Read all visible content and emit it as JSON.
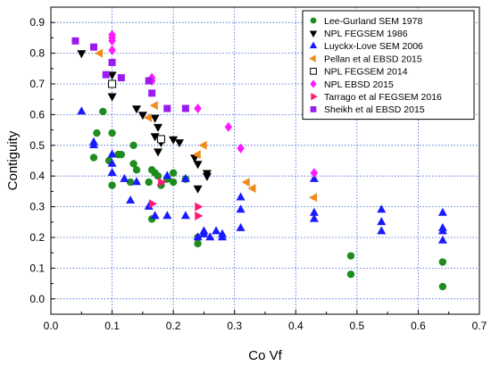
{
  "chart_data": {
    "type": "scatter",
    "xlabel": "Co Vf",
    "ylabel": "Contiguity",
    "xlim": [
      0,
      0.7
    ],
    "ylim": [
      -0.05,
      0.95
    ],
    "x_ticks": [
      0.0,
      0.1,
      0.2,
      0.3,
      0.4,
      0.5,
      0.6,
      0.7
    ],
    "x_tick_labels": [
      "0.0",
      "0.1",
      "0.2",
      "0.3",
      "0.4",
      "0.5",
      "0.6",
      "0.7"
    ],
    "y_ticks": [
      0.0,
      0.1,
      0.2,
      0.3,
      0.4,
      0.5,
      0.6,
      0.7,
      0.8,
      0.9
    ],
    "y_tick_labels": [
      "0.0",
      "0.1",
      "0.2",
      "0.3",
      "0.4",
      "0.5",
      "0.6",
      "0.7",
      "0.8",
      "0.9"
    ],
    "grid": true,
    "legend_position": "top-right",
    "series": [
      {
        "name": "Lee-Gurland SEM 1978",
        "marker": "circle",
        "color": "#1e8c1e",
        "points": [
          [
            0.07,
            0.46
          ],
          [
            0.075,
            0.54
          ],
          [
            0.085,
            0.61
          ],
          [
            0.095,
            0.45
          ],
          [
            0.1,
            0.54
          ],
          [
            0.1,
            0.37
          ],
          [
            0.11,
            0.47
          ],
          [
            0.115,
            0.47
          ],
          [
            0.13,
            0.38
          ],
          [
            0.135,
            0.44
          ],
          [
            0.135,
            0.5
          ],
          [
            0.14,
            0.42
          ],
          [
            0.16,
            0.38
          ],
          [
            0.165,
            0.42
          ],
          [
            0.165,
            0.26
          ],
          [
            0.17,
            0.41
          ],
          [
            0.175,
            0.4
          ],
          [
            0.18,
            0.37
          ],
          [
            0.19,
            0.39
          ],
          [
            0.2,
            0.38
          ],
          [
            0.2,
            0.41
          ],
          [
            0.22,
            0.39
          ],
          [
            0.24,
            0.2
          ],
          [
            0.24,
            0.18
          ],
          [
            0.49,
            0.14
          ],
          [
            0.49,
            0.08
          ],
          [
            0.64,
            0.12
          ],
          [
            0.64,
            0.04
          ]
        ]
      },
      {
        "name": "NPL FEGSEM 1986",
        "marker": "triangle-down",
        "color": "#000000",
        "points": [
          [
            0.05,
            0.8
          ],
          [
            0.1,
            0.73
          ],
          [
            0.1,
            0.66
          ],
          [
            0.14,
            0.62
          ],
          [
            0.15,
            0.6
          ],
          [
            0.17,
            0.59
          ],
          [
            0.175,
            0.56
          ],
          [
            0.17,
            0.53
          ],
          [
            0.18,
            0.51
          ],
          [
            0.175,
            0.48
          ],
          [
            0.2,
            0.52
          ],
          [
            0.21,
            0.51
          ],
          [
            0.235,
            0.46
          ],
          [
            0.24,
            0.44
          ],
          [
            0.255,
            0.41
          ],
          [
            0.255,
            0.4
          ],
          [
            0.24,
            0.36
          ]
        ]
      },
      {
        "name": "Luyckx-Love SEM 2006",
        "marker": "triangle-up",
        "color": "#1a1aff",
        "points": [
          [
            0.05,
            0.61
          ],
          [
            0.07,
            0.51
          ],
          [
            0.07,
            0.5
          ],
          [
            0.1,
            0.47
          ],
          [
            0.1,
            0.44
          ],
          [
            0.1,
            0.41
          ],
          [
            0.12,
            0.39
          ],
          [
            0.13,
            0.32
          ],
          [
            0.14,
            0.38
          ],
          [
            0.16,
            0.3
          ],
          [
            0.17,
            0.27
          ],
          [
            0.19,
            0.27
          ],
          [
            0.19,
            0.4
          ],
          [
            0.22,
            0.27
          ],
          [
            0.22,
            0.39
          ],
          [
            0.24,
            0.2
          ],
          [
            0.25,
            0.21
          ],
          [
            0.25,
            0.22
          ],
          [
            0.26,
            0.2
          ],
          [
            0.27,
            0.22
          ],
          [
            0.28,
            0.21
          ],
          [
            0.28,
            0.2
          ],
          [
            0.31,
            0.33
          ],
          [
            0.31,
            0.29
          ],
          [
            0.31,
            0.23
          ],
          [
            0.43,
            0.39
          ],
          [
            0.43,
            0.28
          ],
          [
            0.43,
            0.26
          ],
          [
            0.54,
            0.29
          ],
          [
            0.54,
            0.25
          ],
          [
            0.54,
            0.22
          ],
          [
            0.64,
            0.28
          ],
          [
            0.64,
            0.23
          ],
          [
            0.64,
            0.22
          ],
          [
            0.64,
            0.19
          ]
        ]
      },
      {
        "name": "Pellan et al EBSD 2015",
        "marker": "triangle-left",
        "color": "#f08c1e",
        "points": [
          [
            0.08,
            0.8
          ],
          [
            0.16,
            0.59
          ],
          [
            0.17,
            0.63
          ],
          [
            0.24,
            0.47
          ],
          [
            0.25,
            0.5
          ],
          [
            0.32,
            0.38
          ],
          [
            0.33,
            0.36
          ],
          [
            0.43,
            0.33
          ]
        ]
      },
      {
        "name": "NPL FEGSEM 2014",
        "marker": "square-open",
        "color": "#000000",
        "points": [
          [
            0.1,
            0.7
          ],
          [
            0.18,
            0.52
          ]
        ]
      },
      {
        "name": "NPL EBSD 2015",
        "marker": "diamond",
        "color": "#ff1aff",
        "points": [
          [
            0.1,
            0.86
          ],
          [
            0.1,
            0.85
          ],
          [
            0.1,
            0.84
          ],
          [
            0.1,
            0.81
          ],
          [
            0.165,
            0.72
          ],
          [
            0.165,
            0.71
          ],
          [
            0.24,
            0.62
          ],
          [
            0.29,
            0.56
          ],
          [
            0.31,
            0.49
          ],
          [
            0.43,
            0.41
          ]
        ]
      },
      {
        "name": "Tarrago et al FEGSEM 2016",
        "marker": "triangle-right",
        "color": "#ff1a78",
        "points": [
          [
            0.165,
            0.31
          ],
          [
            0.18,
            0.38
          ],
          [
            0.24,
            0.3
          ],
          [
            0.24,
            0.27
          ]
        ]
      },
      {
        "name": "Sheikh et al EBSD 2015",
        "marker": "square",
        "color": "#9b1aee",
        "points": [
          [
            0.04,
            0.84
          ],
          [
            0.07,
            0.82
          ],
          [
            0.09,
            0.73
          ],
          [
            0.1,
            0.77
          ],
          [
            0.115,
            0.72
          ],
          [
            0.16,
            0.71
          ],
          [
            0.165,
            0.67
          ],
          [
            0.19,
            0.62
          ],
          [
            0.22,
            0.62
          ]
        ]
      }
    ]
  }
}
